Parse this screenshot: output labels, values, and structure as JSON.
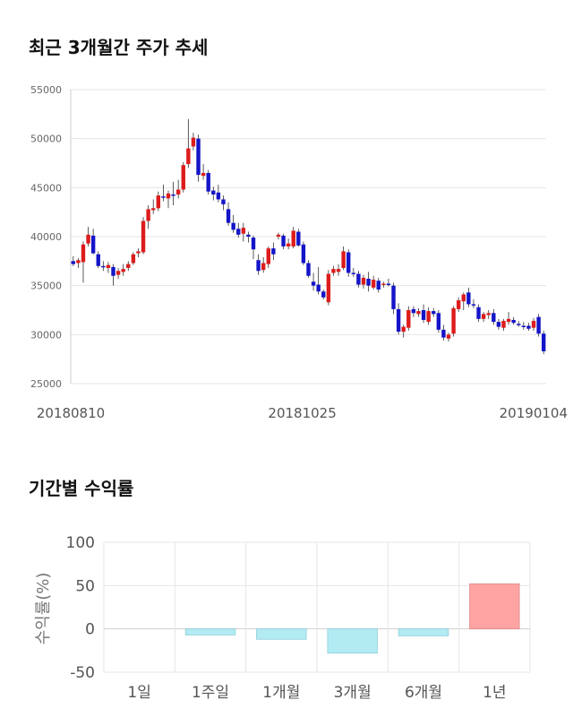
{
  "titles": {
    "price_trend": "최근 3개월간 주가 추세",
    "period_returns": "기간별 수익률"
  },
  "colors": {
    "up": "#dd1c1c",
    "down": "#1414c8",
    "positive_bar": "#ffa3a3",
    "negative_bar": "#b2ebf2",
    "grid": "#e6e6e6"
  },
  "chart_data": [
    {
      "type": "candlestick",
      "title": "최근 3개월간 주가 추세",
      "ylim": [
        25000,
        55000
      ],
      "yticks": [
        55000,
        50000,
        45000,
        40000,
        35000,
        30000,
        25000
      ],
      "xtick_labels": [
        "20180810",
        "20181025",
        "20190104"
      ],
      "grid": true,
      "candles": [
        [
          37500,
          38000,
          37000,
          37200
        ],
        [
          37300,
          37800,
          36800,
          37600
        ],
        [
          37400,
          39500,
          35300,
          39200
        ],
        [
          39300,
          41000,
          39000,
          40200
        ],
        [
          40100,
          40800,
          38200,
          38300
        ],
        [
          38200,
          38500,
          36800,
          37000
        ],
        [
          37000,
          37500,
          36500,
          36900
        ],
        [
          36800,
          37400,
          36300,
          37100
        ],
        [
          36900,
          37200,
          35000,
          36000
        ],
        [
          36100,
          36800,
          35700,
          36500
        ],
        [
          36400,
          37200,
          36000,
          36700
        ],
        [
          36800,
          37500,
          36500,
          37200
        ],
        [
          37300,
          38400,
          37100,
          38200
        ],
        [
          38300,
          38800,
          37900,
          38500
        ],
        [
          38400,
          42000,
          38200,
          41600
        ],
        [
          41600,
          43200,
          40800,
          42800
        ],
        [
          42700,
          43800,
          42300,
          42900
        ],
        [
          42900,
          44600,
          42600,
          44200
        ],
        [
          44100,
          45300,
          43600,
          44000
        ],
        [
          43900,
          44700,
          42900,
          44400
        ],
        [
          44300,
          45600,
          43200,
          44200
        ],
        [
          44300,
          45800,
          43900,
          44800
        ],
        [
          44800,
          47600,
          44500,
          47300
        ],
        [
          47400,
          52000,
          47000,
          49000
        ],
        [
          49200,
          50600,
          48800,
          50100
        ],
        [
          50000,
          50400,
          45600,
          46300
        ],
        [
          46200,
          47400,
          45800,
          46500
        ],
        [
          46500,
          46800,
          44300,
          44600
        ],
        [
          44700,
          45100,
          43700,
          44300
        ],
        [
          44500,
          45300,
          43500,
          43800
        ],
        [
          43800,
          44200,
          42700,
          43300
        ],
        [
          42800,
          43500,
          41100,
          41400
        ],
        [
          41400,
          42200,
          40400,
          40700
        ],
        [
          40800,
          41400,
          39900,
          40200
        ],
        [
          40300,
          41400,
          39500,
          40900
        ],
        [
          40200,
          40500,
          39400,
          40000
        ],
        [
          39900,
          40100,
          37700,
          38700
        ],
        [
          37600,
          38200,
          36100,
          36500
        ],
        [
          36600,
          37900,
          36300,
          37300
        ],
        [
          37200,
          39000,
          36800,
          38800
        ],
        [
          38800,
          39400,
          37600,
          38200
        ],
        [
          40000,
          40400,
          39700,
          40200
        ],
        [
          40100,
          40300,
          38700,
          39000
        ],
        [
          39000,
          39800,
          38700,
          39300
        ],
        [
          39000,
          41000,
          38800,
          40600
        ],
        [
          40500,
          40800,
          39000,
          39100
        ],
        [
          39200,
          39500,
          37100,
          37300
        ],
        [
          37300,
          37600,
          35800,
          36000
        ],
        [
          35400,
          36300,
          34500,
          35000
        ],
        [
          35100,
          36900,
          34100,
          34400
        ],
        [
          34400,
          34600,
          33600,
          33800
        ],
        [
          33300,
          36600,
          33000,
          36200
        ],
        [
          36300,
          37000,
          36000,
          36700
        ],
        [
          36400,
          37200,
          36000,
          36700
        ],
        [
          36800,
          39000,
          36600,
          38500
        ],
        [
          38400,
          38700,
          35900,
          36300
        ],
        [
          36300,
          36800,
          35900,
          36200
        ],
        [
          36200,
          36500,
          34800,
          35100
        ],
        [
          35100,
          36100,
          34700,
          35800
        ],
        [
          35700,
          36400,
          34400,
          35000
        ],
        [
          34800,
          36000,
          34600,
          35600
        ],
        [
          35500,
          35800,
          34300,
          34600
        ],
        [
          35100,
          35400,
          34800,
          35200
        ],
        [
          35200,
          35700,
          34900,
          35100
        ],
        [
          35000,
          35300,
          32100,
          32600
        ],
        [
          32600,
          33200,
          30000,
          30300
        ],
        [
          30300,
          31000,
          29700,
          30800
        ],
        [
          30700,
          32900,
          30400,
          32500
        ],
        [
          32600,
          32900,
          31800,
          32200
        ],
        [
          32100,
          32700,
          31800,
          32400
        ],
        [
          32500,
          33100,
          31200,
          31500
        ],
        [
          31300,
          32800,
          31000,
          32400
        ],
        [
          32400,
          32700,
          31800,
          32100
        ],
        [
          32200,
          32500,
          30200,
          30500
        ],
        [
          30500,
          31000,
          29400,
          29700
        ],
        [
          29600,
          30200,
          29300,
          30000
        ],
        [
          30100,
          32900,
          29800,
          32700
        ],
        [
          32600,
          33800,
          32300,
          33500
        ],
        [
          33400,
          34300,
          32500,
          34100
        ],
        [
          34300,
          34800,
          32800,
          33100
        ],
        [
          33100,
          33600,
          32700,
          33000
        ],
        [
          32800,
          33100,
          31300,
          31600
        ],
        [
          31600,
          32300,
          31300,
          32100
        ],
        [
          32000,
          32500,
          31600,
          32200
        ],
        [
          32200,
          32600,
          31000,
          31300
        ],
        [
          31300,
          31600,
          30500,
          30800
        ],
        [
          30700,
          31600,
          30400,
          31400
        ],
        [
          31300,
          32300,
          31000,
          31600
        ],
        [
          31500,
          31800,
          31000,
          31200
        ],
        [
          31100,
          31400,
          30800,
          31000
        ],
        [
          30900,
          31300,
          30500,
          30800
        ],
        [
          30900,
          31200,
          30400,
          30600
        ],
        [
          30700,
          31700,
          30400,
          31400
        ],
        [
          31800,
          32100,
          29800,
          30100
        ],
        [
          30100,
          30400,
          28000,
          28300
        ]
      ]
    },
    {
      "type": "bar",
      "title": "기간별 수익률",
      "ylabel": "수익률(%)",
      "ylim": [
        -50,
        100
      ],
      "yticks": [
        100,
        50,
        0,
        -50
      ],
      "categories": [
        "1일",
        "1주일",
        "1개월",
        "3개월",
        "6개월",
        "1년"
      ],
      "values": [
        0,
        -7,
        -12,
        -28,
        -8,
        52
      ],
      "grid": true
    }
  ]
}
